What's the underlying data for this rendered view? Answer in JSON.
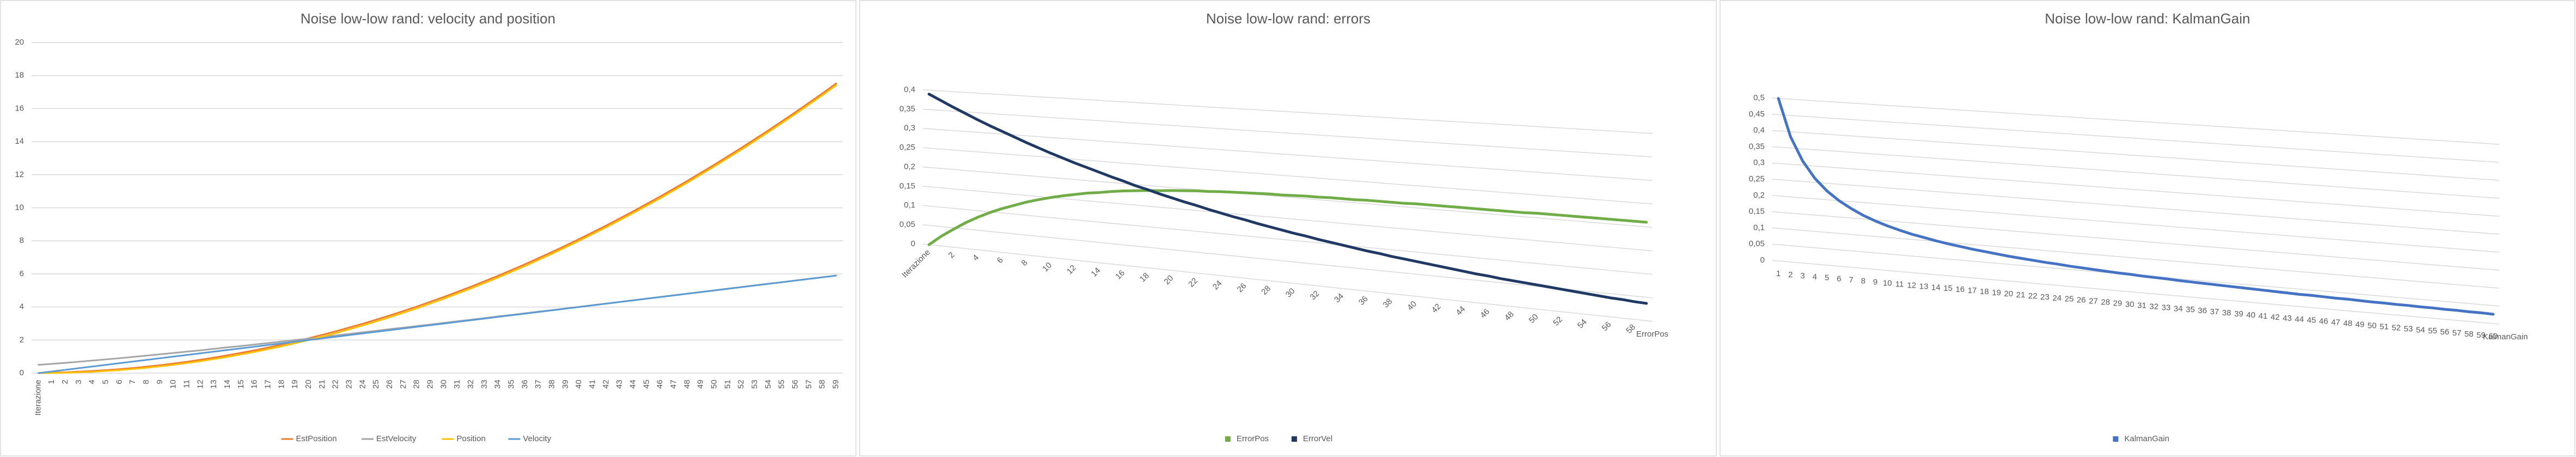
{
  "chart_data": [
    {
      "type": "line",
      "title": "Noise low-low rand: velocity and position",
      "categories": [
        "Iterazione",
        "1",
        "2",
        "3",
        "4",
        "5",
        "6",
        "7",
        "8",
        "9",
        "10",
        "11",
        "12",
        "13",
        "14",
        "15",
        "16",
        "17",
        "18",
        "19",
        "20",
        "21",
        "22",
        "23",
        "24",
        "25",
        "26",
        "27",
        "28",
        "29",
        "30",
        "31",
        "32",
        "33",
        "34",
        "35",
        "36",
        "37",
        "38",
        "39",
        "40",
        "41",
        "42",
        "43",
        "44",
        "45",
        "46",
        "47",
        "48",
        "49",
        "50",
        "51",
        "52",
        "53",
        "54",
        "55",
        "56",
        "57",
        "58",
        "59"
      ],
      "series": [
        {
          "name": "EstPosition",
          "color": "#ed7d31",
          "values": [
            0,
            0.03,
            0.05,
            0.09,
            0.13,
            0.18,
            0.24,
            0.31,
            0.39,
            0.48,
            0.58,
            0.69,
            0.81,
            0.94,
            1.08,
            1.23,
            1.38,
            1.55,
            1.73,
            1.92,
            2.11,
            2.32,
            2.53,
            2.76,
            2.99,
            3.24,
            3.49,
            3.76,
            4.03,
            4.32,
            4.61,
            4.92,
            5.23,
            5.56,
            5.89,
            6.24,
            6.59,
            6.96,
            7.33,
            7.72,
            8.11,
            8.52,
            8.93,
            9.36,
            9.79,
            10.24,
            10.69,
            11.16,
            11.63,
            12.12,
            12.61,
            13.12,
            13.63,
            14.16,
            14.69,
            15.24,
            15.79,
            16.36,
            16.93,
            17.52
          ]
        },
        {
          "name": "EstVelocity",
          "color": "#a5a5a5",
          "values": [
            0.5,
            0.56,
            0.62,
            0.69,
            0.76,
            0.83,
            0.9,
            0.98,
            1.06,
            1.14,
            1.22,
            1.3,
            1.38,
            1.47,
            1.56,
            1.64,
            1.73,
            1.82,
            1.91,
            2.0,
            2.09,
            2.18,
            2.28,
            2.37,
            2.47,
            2.56,
            2.66,
            2.75,
            2.85,
            2.94,
            3.04,
            3.14,
            3.23,
            3.33,
            3.43,
            3.52,
            3.62,
            3.72,
            3.81,
            3.91,
            4.01,
            4.11,
            4.21,
            4.31,
            4.41,
            4.51,
            4.61,
            4.71,
            4.81,
            4.91,
            5.01,
            5.11,
            5.21,
            5.31,
            5.41,
            5.5,
            5.6,
            5.7,
            5.8,
            5.9
          ]
        },
        {
          "name": "Position",
          "color": "#ffc000",
          "values": [
            0,
            0.01,
            0.02,
            0.05,
            0.08,
            0.13,
            0.18,
            0.25,
            0.32,
            0.41,
            0.5,
            0.61,
            0.72,
            0.85,
            0.98,
            1.13,
            1.28,
            1.45,
            1.62,
            1.81,
            2,
            2.21,
            2.42,
            2.65,
            2.88,
            3.13,
            3.38,
            3.65,
            3.92,
            4.21,
            4.5,
            4.81,
            5.12,
            5.45,
            5.78,
            6.13,
            6.48,
            6.85,
            7.22,
            7.61,
            8,
            8.41,
            8.82,
            9.25,
            9.68,
            10.13,
            10.58,
            11.05,
            11.52,
            12.01,
            12.5,
            13.01,
            13.52,
            14.05,
            14.58,
            15.13,
            15.68,
            16.25,
            16.82,
            17.41
          ]
        },
        {
          "name": "Velocity",
          "color": "#5b9bd5",
          "values": [
            0,
            0.1,
            0.2,
            0.3,
            0.4,
            0.5,
            0.6,
            0.7,
            0.8,
            0.9,
            1,
            1.1,
            1.2,
            1.3,
            1.4,
            1.5,
            1.6,
            1.7,
            1.8,
            1.9,
            2,
            2.1,
            2.2,
            2.3,
            2.4,
            2.5,
            2.6,
            2.7,
            2.8,
            2.9,
            3,
            3.1,
            3.2,
            3.3,
            3.4,
            3.5,
            3.6,
            3.7,
            3.8,
            3.9,
            4,
            4.1,
            4.2,
            4.3,
            4.4,
            4.5,
            4.6,
            4.7,
            4.8,
            4.9,
            5,
            5.1,
            5.2,
            5.3,
            5.4,
            5.5,
            5.6,
            5.7,
            5.8,
            5.9
          ]
        }
      ],
      "ylim": [
        0,
        20
      ],
      "yticks": [
        0,
        2,
        4,
        6,
        8,
        10,
        12,
        14,
        16,
        18,
        20
      ],
      "grid": true,
      "legend": "bottom"
    },
    {
      "type": "line",
      "3d": true,
      "title": "Noise low-low rand: errors",
      "categories": [
        "Iterazione",
        null,
        "2",
        null,
        "4",
        null,
        "6",
        null,
        "8",
        null,
        "10",
        null,
        "12",
        null,
        "14",
        null,
        "16",
        null,
        "18",
        null,
        "20",
        null,
        "22",
        null,
        "24",
        null,
        "26",
        null,
        "28",
        null,
        "30",
        null,
        "32",
        null,
        "34",
        null,
        "36",
        null,
        "38",
        null,
        "40",
        null,
        "42",
        null,
        "44",
        null,
        "46",
        null,
        "48",
        null,
        "50",
        null,
        "52",
        null,
        "54",
        null,
        "56",
        null,
        "58",
        null
      ],
      "series": [
        {
          "name": "ErrorPos",
          "color": "#70ad47",
          "values": [
            0,
            0.025,
            0.046,
            0.066,
            0.083,
            0.098,
            0.111,
            0.122,
            0.133,
            0.142,
            0.15,
            0.157,
            0.163,
            0.169,
            0.173,
            0.178,
            0.182,
            0.185,
            0.188,
            0.19,
            0.193,
            0.195,
            0.197,
            0.198,
            0.2,
            0.201,
            0.202,
            0.203,
            0.204,
            0.204,
            0.205,
            0.206,
            0.206,
            0.207,
            0.207,
            0.207,
            0.208,
            0.208,
            0.208,
            0.208,
            0.209,
            0.209,
            0.209,
            0.209,
            0.209,
            0.209,
            0.209,
            0.209,
            0.209,
            0.209,
            0.21,
            0.21,
            0.21,
            0.21,
            0.21,
            0.21,
            0.21,
            0.21,
            0.21,
            0.21
          ]
        },
        {
          "name": "ErrorVel",
          "color": "#203864",
          "values": [
            0.39,
            0.375,
            0.36,
            0.346,
            0.332,
            0.319,
            0.307,
            0.295,
            0.283,
            0.272,
            0.261,
            0.251,
            0.241,
            0.232,
            0.223,
            0.214,
            0.206,
            0.197,
            0.19,
            0.182,
            0.175,
            0.168,
            0.162,
            0.155,
            0.149,
            0.143,
            0.138,
            0.132,
            0.127,
            0.122,
            0.117,
            0.113,
            0.108,
            0.104,
            0.1,
            0.096,
            0.092,
            0.089,
            0.085,
            0.082,
            0.079,
            0.076,
            0.073,
            0.07,
            0.067,
            0.064,
            0.062,
            0.059,
            0.057,
            0.055,
            0.053,
            0.051,
            0.049,
            0.047,
            0.045,
            0.043,
            0.041,
            0.04,
            0.038,
            0.037
          ]
        }
      ],
      "ylim": [
        0,
        0.4
      ],
      "yticks": [
        0,
        {
          "value": 0.05,
          "label": "0,05"
        },
        {
          "value": 0.1,
          "label": "0,1"
        },
        {
          "value": 0.15,
          "label": "0,15"
        },
        {
          "value": 0.2,
          "label": "0,2"
        },
        {
          "value": 0.25,
          "label": "0,25"
        },
        {
          "value": 0.3,
          "label": "0,3"
        },
        {
          "value": 0.35,
          "label": "0,35"
        },
        {
          "value": 0.4,
          "label": "0,4"
        }
      ],
      "grid": true,
      "legend": "bottom"
    },
    {
      "type": "line",
      "3d": true,
      "title": "Noise low-low rand: KalmanGain",
      "categories": [
        "1",
        "2",
        "3",
        "4",
        "5",
        "6",
        "7",
        "8",
        "9",
        "10",
        "11",
        "12",
        "13",
        "14",
        "15",
        "16",
        "17",
        "18",
        "19",
        "20",
        "21",
        "22",
        "23",
        "24",
        "25",
        "26",
        "27",
        "28",
        "29",
        "30",
        "31",
        "32",
        "33",
        "34",
        "35",
        "36",
        "37",
        "38",
        "39",
        "40",
        "41",
        "42",
        "43",
        "44",
        "45",
        "46",
        "47",
        "48",
        "49",
        "50",
        "51",
        "52",
        "53",
        "54",
        "55",
        "56",
        "57",
        "58",
        "59",
        "60"
      ],
      "series": [
        {
          "name": "KalmanGain",
          "color": "#4472c4",
          "values": [
            0.5,
            0.385,
            0.313,
            0.263,
            0.227,
            0.2,
            0.179,
            0.161,
            0.147,
            0.135,
            0.125,
            0.116,
            0.109,
            0.102,
            0.096,
            0.091,
            0.086,
            0.082,
            0.078,
            0.074,
            0.071,
            0.068,
            0.065,
            0.063,
            0.06,
            0.058,
            0.056,
            0.054,
            0.052,
            0.051,
            0.049,
            0.048,
            0.047,
            0.045,
            0.044,
            0.043,
            0.042,
            0.041,
            0.04,
            0.039,
            0.038,
            0.037,
            0.036,
            0.035,
            0.035,
            0.034,
            0.033,
            0.033,
            0.032,
            0.031,
            0.031,
            0.03,
            0.03,
            0.029,
            0.029,
            0.028,
            0.028,
            0.027,
            0.027,
            0.026
          ]
        }
      ],
      "ylim": [
        0,
        0.5
      ],
      "yticks": [
        0,
        {
          "value": 0.05,
          "label": "0,05"
        },
        {
          "value": 0.1,
          "label": "0,1"
        },
        {
          "value": 0.15,
          "label": "0,15"
        },
        {
          "value": 0.2,
          "label": "0,2"
        },
        {
          "value": 0.25,
          "label": "0,25"
        },
        {
          "value": 0.3,
          "label": "0,3"
        },
        {
          "value": 0.35,
          "label": "0,35"
        },
        {
          "value": 0.4,
          "label": "0,4"
        },
        {
          "value": 0.45,
          "label": "0,45"
        },
        {
          "value": 0.5,
          "label": "0,5"
        }
      ],
      "grid": true,
      "legend": "bottom"
    }
  ]
}
